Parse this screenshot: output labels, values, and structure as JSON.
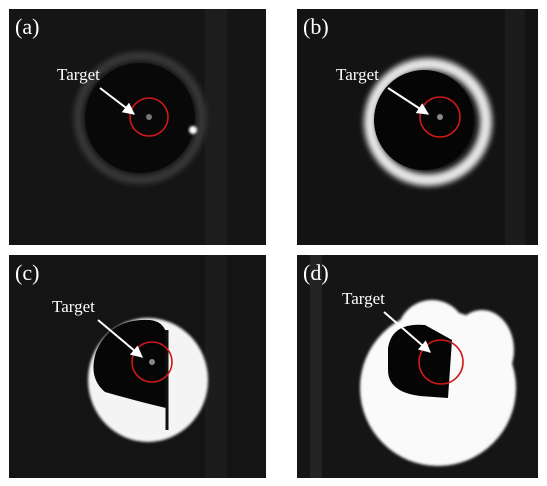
{
  "panels": [
    {
      "label": "(a)",
      "annotation": "Target"
    },
    {
      "label": "(b)",
      "annotation": "Target"
    },
    {
      "label": "(c)",
      "annotation": "Target"
    },
    {
      "label": "(d)",
      "annotation": "Target"
    }
  ]
}
